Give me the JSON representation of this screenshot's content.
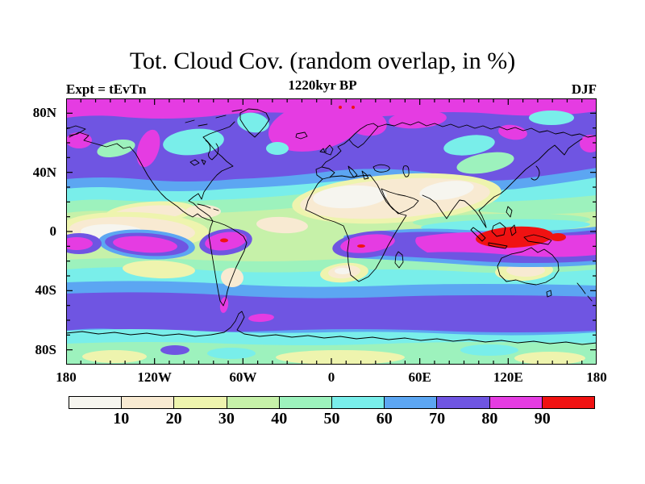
{
  "header": {
    "title": "Tot. Cloud Cov. (random overlap, in %)",
    "subtitle": "1220kyr BP",
    "experiment_label": "Expt = tEvTn",
    "season": "DJF"
  },
  "chart_data": {
    "type": "heatmap",
    "variable": "Total cloud cover (random overlap)",
    "units": "%",
    "projection": "equirectangular global map, 90N-90S, 180W-180E",
    "title": "Tot. Cloud Cov. (random overlap, in %)",
    "subtitle": "1220kyr BP",
    "annotations": [
      "Expt = tEvTn",
      "DJF"
    ],
    "levels": [
      10,
      20,
      30,
      40,
      50,
      60,
      70,
      80,
      90
    ],
    "palette_list": [
      {
        "key": "c0",
        "hex": "#f6f5ef",
        "range": "<10"
      },
      {
        "key": "c1",
        "hex": "#f8ead2",
        "range": "10-20"
      },
      {
        "key": "c2",
        "hex": "#eef4ae",
        "range": "20-30"
      },
      {
        "key": "c3",
        "hex": "#c6f1a9",
        "range": "30-40"
      },
      {
        "key": "c4",
        "hex": "#9df2bd",
        "range": "40-50"
      },
      {
        "key": "c5",
        "hex": "#79eeea",
        "range": "50-60"
      },
      {
        "key": "c6",
        "hex": "#5ca6f2",
        "range": "60-70"
      },
      {
        "key": "c7",
        "hex": "#6f55e2",
        "range": "70-80"
      },
      {
        "key": "c8",
        "hex": "#e53ce2",
        "range": "80-90"
      },
      {
        "key": "c9",
        "hex": "#f01212",
        "range": ">90"
      }
    ],
    "x_axis": {
      "ticks": [
        {
          "label": "180",
          "f": 0
        },
        {
          "label": "120W",
          "f": 0.16667
        },
        {
          "label": "60W",
          "f": 0.33333
        },
        {
          "label": "0",
          "f": 0.5
        },
        {
          "label": "60E",
          "f": 0.66667
        },
        {
          "label": "120E",
          "f": 0.83333
        },
        {
          "label": "180",
          "f": 1
        }
      ],
      "minor_step_deg": 10
    },
    "y_axis": {
      "ticks": [
        {
          "label": "80N",
          "f": 0.05556
        },
        {
          "label": "40N",
          "f": 0.27778
        },
        {
          "label": "0",
          "f": 0.5
        },
        {
          "label": "40S",
          "f": 0.72222
        },
        {
          "label": "80S",
          "f": 0.94444
        }
      ],
      "minor_step_deg": 10
    },
    "features": [
      {
        "region": "Arctic cap 80-90N",
        "value_pct": "80-90"
      },
      {
        "region": "N high-latitude belt 50-78N",
        "value_pct": "70-80"
      },
      {
        "region": "N Atlantic / Iceland / Scandinavia",
        "value_pct": "80-90"
      },
      {
        "region": "NW North America coast",
        "value_pct": "80-90"
      },
      {
        "region": "Canadian Arctic, Greenland interior, central Siberia patches",
        "value_pct": "50-60"
      },
      {
        "region": "Midlatitude N transition 35-50N",
        "value_pct": "50-70"
      },
      {
        "region": "Sahara - Arabia - Central Asia",
        "value_pct": "<10-20"
      },
      {
        "region": "SW North America / E subtropical Pacific",
        "value_pct": "<10-20"
      },
      {
        "region": "Equatorial Atlantic",
        "value_pct": "10-20"
      },
      {
        "region": "SE Pacific ITCZ band 0-15S",
        "value_pct": "80-90"
      },
      {
        "region": "Amazon basin",
        "value_pct": "80-90, core >90"
      },
      {
        "region": "S-central Africa",
        "value_pct": "80-90, core >90"
      },
      {
        "region": "Indian Ocean - W Pacific band 0-15S",
        "value_pct": "80-90"
      },
      {
        "region": "Maritime continent (Indonesia)",
        "value_pct": ">90"
      },
      {
        "region": "S subtropics 20-35S (SE Atlantic, Australia, S Pacific)",
        "value_pct": "10-30"
      },
      {
        "region": "S midlatitudes 35-45S",
        "value_pct": "40-60"
      },
      {
        "region": "Southern Ocean 45-65S",
        "value_pct": "70-80, local 80-90"
      },
      {
        "region": "Antarctic coast 65-75S",
        "value_pct": "50-60"
      },
      {
        "region": "Antarctic interior",
        "value_pct": "20-40"
      }
    ],
    "legend_position": "bottom horizontal colorbar",
    "grid": false
  },
  "colorbar": {
    "labels": [
      "10",
      "20",
      "30",
      "40",
      "50",
      "60",
      "70",
      "80",
      "90"
    ]
  }
}
